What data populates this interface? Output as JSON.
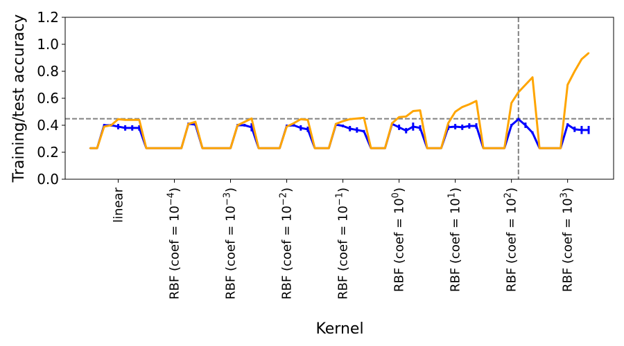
{
  "chart_data": {
    "type": "line",
    "title": "",
    "xlabel": "Kernel",
    "ylabel": "Training/test accuracy",
    "ylim": [
      0.0,
      1.2
    ],
    "xlim": [
      -3.55,
      74.55
    ],
    "yticks": [
      "0.0",
      "0.2",
      "0.4",
      "0.6",
      "0.8",
      "1.0",
      "1.2"
    ],
    "ytick_values": [
      0.0,
      0.2,
      0.4,
      0.6,
      0.8,
      1.0,
      1.2
    ],
    "xticks": [
      {
        "index": 4,
        "text": "linear",
        "exp": ""
      },
      {
        "index": 12,
        "text": "RBF (coef = 10",
        "exp": "−4"
      },
      {
        "index": 20,
        "text": "RBF (coef = 10",
        "exp": "−3"
      },
      {
        "index": 28,
        "text": "RBF (coef = 10",
        "exp": "−2"
      },
      {
        "index": 36,
        "text": "RBF (coef = 10",
        "exp": "−1"
      },
      {
        "index": 44,
        "text": "RBF (coef = 10",
        "exp": "0"
      },
      {
        "index": 52,
        "text": "RBF (coef = 10",
        "exp": "1"
      },
      {
        "index": 60,
        "text": "RBF (coef = 10",
        "exp": "2"
      },
      {
        "index": 68,
        "text": "RBF (coef = 10",
        "exp": "3"
      }
    ],
    "grid": false,
    "reference_lines": {
      "best_test_accuracy": 0.448,
      "best_index": 61
    },
    "series": [
      {
        "name": "training accuracy",
        "color": "#ffa500",
        "values": [
          0.23,
          0.23,
          0.39,
          0.4,
          0.445,
          0.44,
          0.44,
          0.44,
          0.23,
          0.23,
          0.23,
          0.23,
          0.23,
          0.23,
          0.41,
          0.425,
          0.23,
          0.23,
          0.23,
          0.23,
          0.23,
          0.4,
          0.425,
          0.45,
          0.23,
          0.23,
          0.23,
          0.23,
          0.39,
          0.415,
          0.445,
          0.44,
          0.23,
          0.23,
          0.23,
          0.41,
          0.43,
          0.445,
          0.45,
          0.455,
          0.23,
          0.23,
          0.23,
          0.415,
          0.46,
          0.465,
          0.505,
          0.51,
          0.23,
          0.23,
          0.23,
          0.415,
          0.5,
          0.535,
          0.555,
          0.58,
          0.23,
          0.23,
          0.23,
          0.23,
          0.565,
          0.645,
          0.7,
          0.755,
          0.23,
          0.23,
          0.23,
          0.23,
          0.7,
          0.8,
          0.89,
          0.935
        ]
      },
      {
        "name": "test accuracy",
        "color": "#0000ff",
        "values": [
          0.23,
          0.23,
          0.4,
          0.4,
          0.39,
          0.38,
          0.38,
          0.38,
          0.23,
          0.23,
          0.23,
          0.23,
          0.23,
          0.23,
          0.41,
          0.405,
          0.23,
          0.23,
          0.23,
          0.23,
          0.23,
          0.4,
          0.4,
          0.385,
          0.23,
          0.23,
          0.23,
          0.23,
          0.395,
          0.4,
          0.38,
          0.37,
          0.23,
          0.23,
          0.23,
          0.405,
          0.395,
          0.375,
          0.365,
          0.355,
          0.23,
          0.23,
          0.23,
          0.41,
          0.385,
          0.36,
          0.39,
          0.38,
          0.23,
          0.23,
          0.23,
          0.385,
          0.39,
          0.385,
          0.395,
          0.395,
          0.23,
          0.23,
          0.23,
          0.23,
          0.4,
          0.445,
          0.4,
          0.345,
          0.23,
          0.23,
          0.23,
          0.23,
          0.405,
          0.37,
          0.365,
          0.365
        ],
        "errors": [
          0,
          0,
          0.01,
          0.01,
          0.02,
          0.02,
          0.02,
          0.02,
          0,
          0,
          0,
          0,
          0,
          0,
          0.01,
          0.01,
          0,
          0,
          0,
          0,
          0,
          0.01,
          0.01,
          0.03,
          0,
          0,
          0,
          0,
          0.01,
          0.01,
          0.02,
          0.02,
          0,
          0,
          0,
          0.01,
          0.01,
          0.02,
          0.02,
          0.01,
          0,
          0,
          0,
          0.01,
          0.02,
          0.02,
          0.03,
          0.02,
          0,
          0,
          0,
          0.02,
          0.02,
          0.02,
          0.02,
          0.02,
          0,
          0,
          0,
          0,
          0.01,
          0.01,
          0.02,
          0.01,
          0,
          0,
          0,
          0,
          0.01,
          0.02,
          0.03,
          0.03
        ]
      }
    ]
  }
}
